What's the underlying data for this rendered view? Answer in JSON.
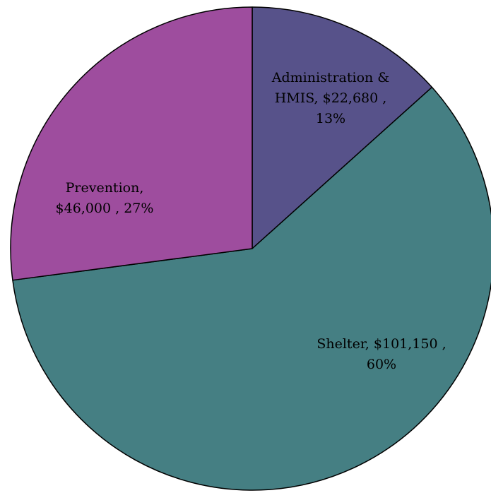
{
  "chart_data": {
    "type": "pie",
    "categories": [
      "Administration & HMIS",
      "Shelter",
      "Prevention"
    ],
    "values": [
      22680,
      101150,
      46000
    ],
    "percents": [
      13,
      60,
      27
    ],
    "labels": [
      [
        "Administration &",
        "HMIS, $22,680 ,",
        "13%"
      ],
      [
        "Shelter, $101,150 ,",
        "60%"
      ],
      [
        "Prevention,",
        "$46,000 , 27%"
      ]
    ],
    "colors": [
      "#57528a",
      "#457f83",
      "#9e4d9e"
    ],
    "start": "12 o'clock",
    "direction": "clockwise",
    "legend": "none"
  }
}
